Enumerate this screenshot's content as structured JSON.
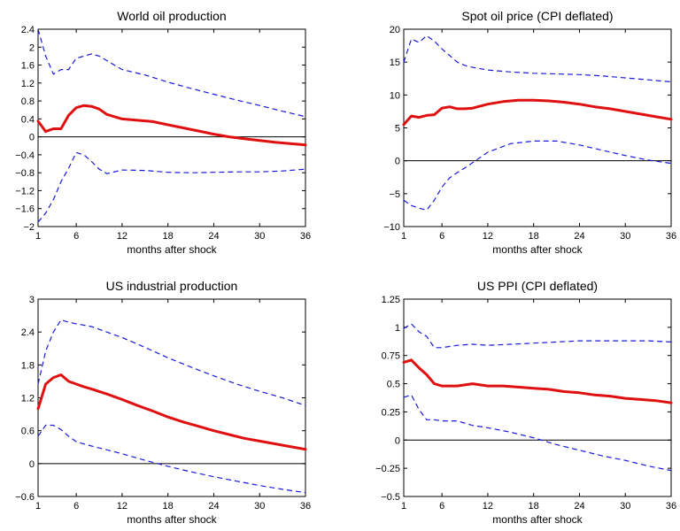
{
  "chart_data": [
    {
      "type": "line",
      "title": "World oil production",
      "xlabel": "months after shock",
      "ylabel": "",
      "xlim": [
        1,
        36
      ],
      "ylim": [
        -2,
        2.4
      ],
      "xticks": [
        1,
        6,
        12,
        18,
        24,
        30,
        36
      ],
      "yticks": [
        -2,
        -1.6,
        -1.2,
        -0.8,
        -0.4,
        0,
        0.4,
        0.8,
        1.2,
        1.6,
        2,
        2.4
      ],
      "ytick_labels": [
        "−2",
        "−1.6",
        "−1.2",
        "−0.8",
        "−0.4",
        "0",
        "0.4",
        "0.8",
        "1.2",
        "1.6",
        "2",
        "2.4"
      ],
      "zero_line": true,
      "series": [
        {
          "role": "response",
          "color": "#e01010",
          "x": [
            1,
            2,
            3,
            4,
            5,
            6,
            7,
            8,
            9,
            10,
            12,
            14,
            16,
            18,
            20,
            22,
            24,
            26,
            28,
            30,
            32,
            34,
            36
          ],
          "y": [
            0.35,
            0.12,
            0.18,
            0.18,
            0.48,
            0.65,
            0.7,
            0.68,
            0.62,
            0.5,
            0.4,
            0.37,
            0.34,
            0.27,
            0.2,
            0.13,
            0.06,
            0.0,
            -0.04,
            -0.08,
            -0.12,
            -0.15,
            -0.18
          ]
        },
        {
          "role": "upper",
          "color": "#1a1ad8",
          "x": [
            1,
            2,
            3,
            4,
            5,
            6,
            7,
            8,
            9,
            10,
            12,
            15,
            18,
            21,
            24,
            27,
            30,
            33,
            36
          ],
          "y": [
            2.4,
            1.8,
            1.4,
            1.5,
            1.5,
            1.75,
            1.8,
            1.85,
            1.8,
            1.7,
            1.5,
            1.38,
            1.22,
            1.08,
            0.95,
            0.82,
            0.7,
            0.57,
            0.45
          ]
        },
        {
          "role": "lower",
          "color": "#1a1ad8",
          "x": [
            1,
            2,
            3,
            4,
            5,
            6,
            7,
            8,
            9,
            10,
            12,
            15,
            18,
            21,
            24,
            27,
            30,
            33,
            36
          ],
          "y": [
            -1.9,
            -1.7,
            -1.4,
            -1.0,
            -0.7,
            -0.35,
            -0.4,
            -0.55,
            -0.72,
            -0.82,
            -0.74,
            -0.75,
            -0.79,
            -0.8,
            -0.79,
            -0.78,
            -0.78,
            -0.76,
            -0.72
          ]
        }
      ]
    },
    {
      "type": "line",
      "title": "Spot oil price (CPI deflated)",
      "xlabel": "months after shock",
      "ylabel": "",
      "xlim": [
        1,
        36
      ],
      "ylim": [
        -10,
        20
      ],
      "xticks": [
        1,
        6,
        12,
        18,
        24,
        30,
        36
      ],
      "yticks": [
        -10,
        -5,
        0,
        5,
        10,
        15,
        20
      ],
      "ytick_labels": [
        "−10",
        "−5",
        "0",
        "5",
        "10",
        "15",
        "20"
      ],
      "zero_line": true,
      "series": [
        {
          "role": "response",
          "color": "#e01010",
          "x": [
            1,
            2,
            3,
            4,
            5,
            6,
            7,
            8,
            9,
            10,
            12,
            14,
            16,
            18,
            20,
            22,
            24,
            26,
            28,
            30,
            32,
            34,
            36
          ],
          "y": [
            5.5,
            6.8,
            6.6,
            6.9,
            7.0,
            8.0,
            8.2,
            7.9,
            7.9,
            8.0,
            8.6,
            9.0,
            9.2,
            9.2,
            9.1,
            8.9,
            8.6,
            8.2,
            7.9,
            7.5,
            7.1,
            6.7,
            6.3
          ]
        },
        {
          "role": "upper",
          "color": "#1a1ad8",
          "x": [
            1,
            2,
            3,
            4,
            5,
            6,
            7,
            8,
            9,
            10,
            12,
            15,
            18,
            21,
            24,
            27,
            30,
            33,
            36
          ],
          "y": [
            15.0,
            18.5,
            18.0,
            19.0,
            18.2,
            17.0,
            16.0,
            15.0,
            14.5,
            14.2,
            13.8,
            13.5,
            13.3,
            13.2,
            13.1,
            12.9,
            12.6,
            12.3,
            12.0
          ]
        },
        {
          "role": "lower",
          "color": "#1a1ad8",
          "x": [
            1,
            2,
            3,
            4,
            5,
            6,
            7,
            8,
            9,
            10,
            12,
            15,
            18,
            21,
            24,
            27,
            30,
            33,
            36
          ],
          "y": [
            -6.0,
            -6.8,
            -7.2,
            -7.5,
            -6.0,
            -4.0,
            -2.6,
            -1.8,
            -1.1,
            -0.3,
            1.3,
            2.6,
            3.0,
            3.0,
            2.4,
            1.6,
            0.8,
            0.1,
            -0.4
          ]
        }
      ]
    },
    {
      "type": "line",
      "title": "US industrial production",
      "xlabel": "months after shock",
      "ylabel": "",
      "xlim": [
        1,
        36
      ],
      "ylim": [
        -0.6,
        3
      ],
      "xticks": [
        1,
        6,
        12,
        18,
        24,
        30,
        36
      ],
      "yticks": [
        -0.6,
        0,
        0.6,
        1.2,
        1.8,
        2.4,
        3
      ],
      "ytick_labels": [
        "−0.6",
        "0",
        "0.6",
        "1.2",
        "1.8",
        "2.4",
        "3"
      ],
      "zero_line": true,
      "series": [
        {
          "role": "response",
          "color": "#e01010",
          "x": [
            1,
            2,
            3,
            4,
            5,
            6,
            7,
            8,
            10,
            12,
            14,
            16,
            18,
            20,
            22,
            24,
            26,
            28,
            30,
            32,
            34,
            36
          ],
          "y": [
            1.0,
            1.45,
            1.57,
            1.62,
            1.5,
            1.45,
            1.4,
            1.36,
            1.27,
            1.17,
            1.06,
            0.96,
            0.85,
            0.76,
            0.68,
            0.6,
            0.53,
            0.46,
            0.41,
            0.36,
            0.31,
            0.26
          ]
        },
        {
          "role": "upper",
          "color": "#1a1ad8",
          "x": [
            1,
            2,
            3,
            4,
            5,
            6,
            8,
            10,
            12,
            15,
            18,
            21,
            24,
            27,
            30,
            33,
            36
          ],
          "y": [
            1.45,
            2.05,
            2.4,
            2.62,
            2.58,
            2.55,
            2.5,
            2.4,
            2.3,
            2.12,
            1.93,
            1.76,
            1.6,
            1.45,
            1.32,
            1.2,
            1.06
          ]
        },
        {
          "role": "lower",
          "color": "#1a1ad8",
          "x": [
            1,
            2,
            3,
            4,
            5,
            6,
            8,
            10,
            12,
            15,
            18,
            21,
            24,
            27,
            30,
            33,
            36
          ],
          "y": [
            0.5,
            0.7,
            0.7,
            0.62,
            0.5,
            0.4,
            0.32,
            0.25,
            0.18,
            0.06,
            -0.05,
            -0.15,
            -0.24,
            -0.32,
            -0.4,
            -0.47,
            -0.53
          ]
        }
      ]
    },
    {
      "type": "line",
      "title": "US PPI (CPI deflated)",
      "xlabel": "months after shock",
      "ylabel": "",
      "xlim": [
        1,
        36
      ],
      "ylim": [
        -0.5,
        1.25
      ],
      "xticks": [
        1,
        6,
        12,
        18,
        24,
        30,
        36
      ],
      "yticks": [
        -0.5,
        -0.25,
        0,
        0.25,
        0.5,
        0.75,
        1,
        1.25
      ],
      "ytick_labels": [
        "−0.5",
        "−0.25",
        "0",
        "0.25",
        "0.5",
        "0.75",
        "1",
        "1.25"
      ],
      "zero_line": true,
      "series": [
        {
          "role": "response",
          "color": "#e01010",
          "x": [
            1,
            2,
            3,
            4,
            5,
            6,
            7,
            8,
            10,
            12,
            14,
            16,
            18,
            20,
            22,
            24,
            26,
            28,
            30,
            32,
            34,
            36
          ],
          "y": [
            0.69,
            0.71,
            0.64,
            0.58,
            0.5,
            0.48,
            0.48,
            0.48,
            0.5,
            0.48,
            0.48,
            0.47,
            0.46,
            0.45,
            0.43,
            0.42,
            0.4,
            0.39,
            0.37,
            0.36,
            0.35,
            0.33
          ]
        },
        {
          "role": "upper",
          "color": "#1a1ad8",
          "x": [
            1,
            2,
            3,
            4,
            5,
            6,
            8,
            10,
            12,
            15,
            18,
            21,
            24,
            27,
            30,
            33,
            36
          ],
          "y": [
            0.99,
            1.03,
            0.96,
            0.92,
            0.82,
            0.82,
            0.84,
            0.85,
            0.84,
            0.85,
            0.86,
            0.87,
            0.88,
            0.88,
            0.88,
            0.88,
            0.87
          ]
        },
        {
          "role": "lower",
          "color": "#1a1ad8",
          "x": [
            1,
            2,
            3,
            4,
            5,
            6,
            8,
            10,
            12,
            15,
            18,
            21,
            24,
            27,
            30,
            33,
            36
          ],
          "y": [
            0.38,
            0.4,
            0.27,
            0.18,
            0.18,
            0.17,
            0.17,
            0.13,
            0.11,
            0.07,
            0.02,
            -0.04,
            -0.09,
            -0.14,
            -0.18,
            -0.23,
            -0.27
          ]
        }
      ]
    }
  ]
}
